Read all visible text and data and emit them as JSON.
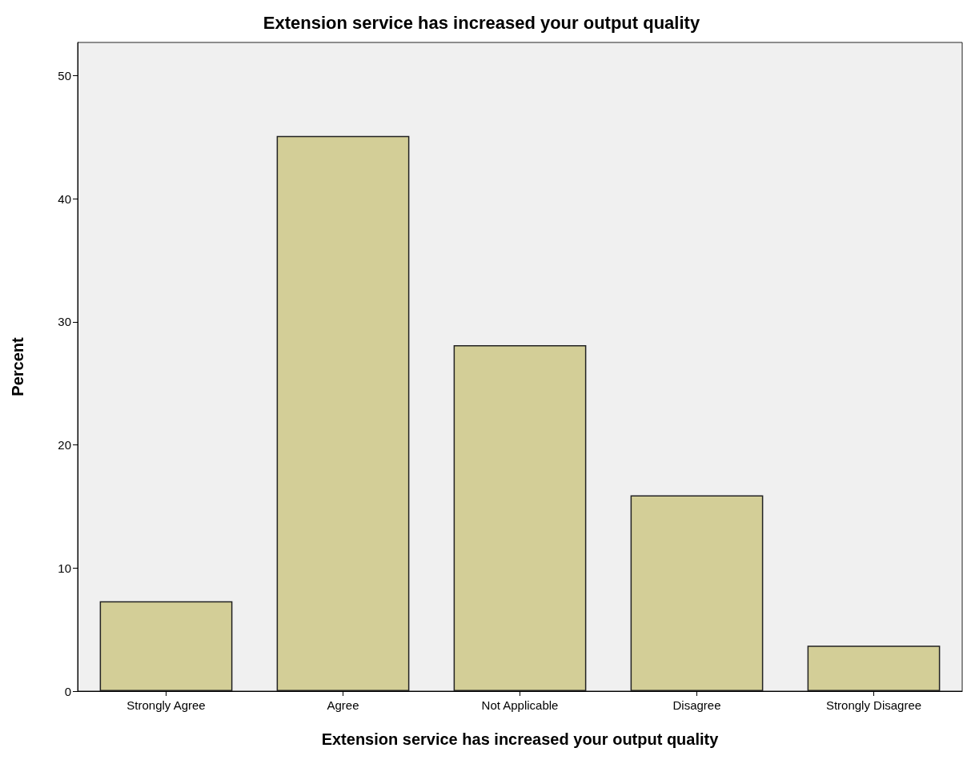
{
  "chart_data": {
    "type": "bar",
    "title": "Extension service has increased your output quality",
    "xlabel": "Extension service has increased your output quality",
    "ylabel": "Percent",
    "categories": [
      "Strongly Agree",
      "Agree",
      "Not Applicable",
      "Disagree",
      "Strongly Disagree"
    ],
    "values": [
      7.3,
      45.1,
      28.1,
      15.9,
      3.7
    ],
    "color": "#d3ce97",
    "ylim": [
      0,
      52.7
    ],
    "yticks": [
      0,
      10,
      20,
      30,
      40,
      50
    ],
    "grid": false
  }
}
